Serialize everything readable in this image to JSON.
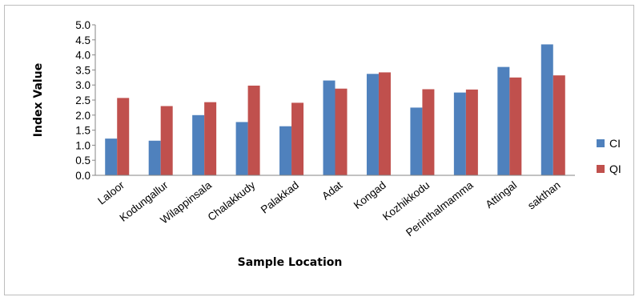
{
  "chart_data": {
    "type": "bar",
    "title": "",
    "xlabel": "Sample Location",
    "ylabel": "Index Value",
    "ylim": [
      0,
      5
    ],
    "yticks": [
      "0.0",
      "0.5",
      "1.0",
      "1.5",
      "2.0",
      "2.5",
      "3.0",
      "3.5",
      "4.0",
      "4.5",
      "5.0"
    ],
    "categories": [
      "Laloor",
      "Kodungallur",
      "Wilappinsala",
      "Chalakkudy",
      "Palakkad",
      "Adat",
      "Kongad",
      "Kozhikkodu",
      "Perinthalmamma",
      "Attingal",
      "sakthan"
    ],
    "series": [
      {
        "name": "CI",
        "color": "#4f81bd",
        "values": [
          1.22,
          1.15,
          2.0,
          1.77,
          1.63,
          3.15,
          3.37,
          2.25,
          2.75,
          3.6,
          4.35
        ]
      },
      {
        "name": "QI",
        "color": "#c0504d",
        "values": [
          2.57,
          2.3,
          2.43,
          2.98,
          2.41,
          2.88,
          3.42,
          2.86,
          2.85,
          3.25,
          3.32
        ]
      }
    ],
    "grid": false,
    "legend": "right"
  }
}
